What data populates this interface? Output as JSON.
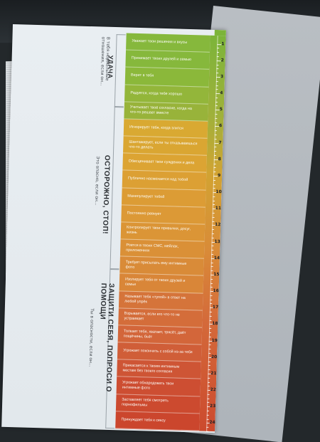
{
  "scene": {
    "description_visible": "photo of a printed page with a colour scale",
    "colors": {
      "green": "#7cb43a",
      "yellow": "#d9a93a",
      "orange": "#d98a38",
      "red": "#cc4a2e",
      "paper": "#e6ecef"
    }
  },
  "sections": [
    {
      "title": "УДАЧА",
      "subtitle": "В тебя нормальные отношения, если он..."
    },
    {
      "title": "ОСТОРОЖНО, СТОП!",
      "subtitle": "Это опасно, если он..."
    },
    {
      "title": "ЗАЩИТИ СЕБЯ, ПОПРОСИ О ПОМОЩИ",
      "subtitle": "Ты в опасности, если он..."
    }
  ],
  "rows": [
    {
      "text": "Уважает твои решения и вкусы",
      "color": "#86b83c"
    },
    {
      "text": "Принимает твоих друзей и семью",
      "color": "#86b83c"
    },
    {
      "text": "Верит в тебя",
      "color": "#8bb83a"
    },
    {
      "text": "Радуется, когда тебе хорошо",
      "color": "#93b63a"
    },
    {
      "text": "Учитывает твоё согласие, когда на что-то решает вместе",
      "color": "#98b33a"
    },
    {
      "text": "Игнорирует тебя, когда злится",
      "color": "#d9a932"
    },
    {
      "text": "Шантажирует, если ты отказываешься что-то делать",
      "color": "#daa632"
    },
    {
      "text": "Обесценивает твои суждения и дела",
      "color": "#dca433"
    },
    {
      "text": "Публично насмехается над тобой",
      "color": "#dca034"
    },
    {
      "text": "Манипулирует тобой",
      "color": "#dc9c35"
    },
    {
      "text": "Постоянно ревнует",
      "color": "#dc9936"
    },
    {
      "text": "Контролирует твои привычки, досуг, жизнь",
      "color": "#db9536"
    },
    {
      "text": "Роется в твоих СМС, мейлах, приложениях",
      "color": "#da9037"
    },
    {
      "text": "Требует присылать ему интимные фото",
      "color": "#d98b38"
    },
    {
      "text": "Изолирует тебя от твоих друзей и семьи",
      "color": "#d98638"
    },
    {
      "text": "Называет тебя «тупой» в ответ на любой упрёк",
      "color": "#d5743a"
    },
    {
      "text": "Взрывается, если его что-то не устраивает",
      "color": "#d46d3a"
    },
    {
      "text": "Толкает тебя, хватает, трясёт, даёт пощёчины, бьёт",
      "color": "#d3663a"
    },
    {
      "text": "Угрожает покончить с собой из-за тебя",
      "color": "#d05e38"
    },
    {
      "text": "Прикасается к твоим интимным местам без твоего согласия",
      "color": "#ce5535"
    },
    {
      "text": "Угрожает обнародовать твои интимные фото",
      "color": "#cd4e32"
    },
    {
      "text": "Заставляет тебя смотреть порнофильмы",
      "color": "#cc4a2f"
    },
    {
      "text": "Принуждает тебя к сексу",
      "color": "#cb462d"
    }
  ],
  "scale": {
    "numbers": [
      "1",
      "2",
      "3",
      "4",
      "5",
      "6",
      "7",
      "8",
      "9",
      "10",
      "11",
      "12",
      "13",
      "14",
      "15",
      "16",
      "17",
      "18",
      "19",
      "20",
      "21",
      "22",
      "23",
      "24"
    ]
  }
}
